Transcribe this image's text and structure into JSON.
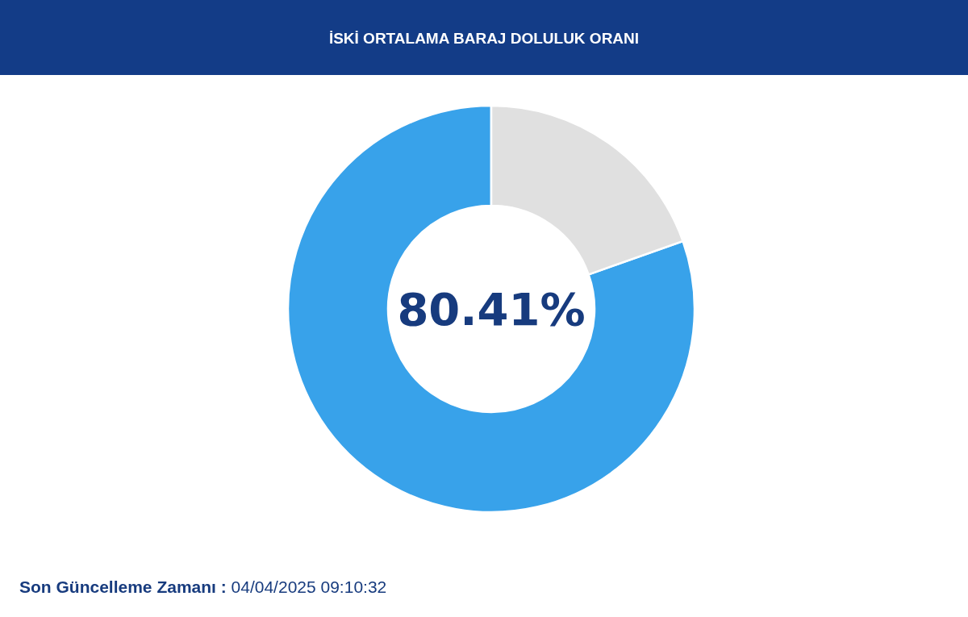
{
  "chart_data": {
    "type": "donut",
    "title": "İSKİ ORTALAMA BARAJ DOLULUK ORANI",
    "categories": [
      null,
      null
    ],
    "values": [
      80.41,
      19.59
    ],
    "colors": [
      "#38a2ea",
      "#e0e0e0"
    ],
    "value_labels": [
      "80.41%",
      null
    ],
    "annotations": [
      "Son Güncelleme Zamanı : 04/04/2025 09:10:32"
    ]
  }
}
